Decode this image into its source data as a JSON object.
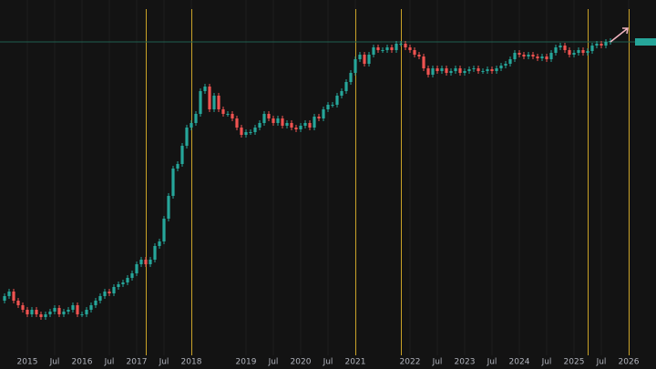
{
  "chart_data": {
    "type": "candlestick",
    "x": [
      "2014-08",
      "2014-09",
      "2014-10",
      "2014-11",
      "2014-12",
      "2015-01",
      "2015-02",
      "2015-03",
      "2015-04",
      "2015-05",
      "2015-06",
      "2015-07",
      "2015-08",
      "2015-09",
      "2015-10",
      "2015-11",
      "2015-12",
      "2016-01",
      "2016-02",
      "2016-03",
      "2016-04",
      "2016-05",
      "2016-06",
      "2016-07",
      "2016-08",
      "2016-09",
      "2016-10",
      "2016-11",
      "2016-12",
      "2017-01",
      "2017-02",
      "2017-03",
      "2017-04",
      "2017-05",
      "2017-06",
      "2017-07",
      "2017-08",
      "2017-09",
      "2017-10",
      "2017-11",
      "2017-12",
      "2018-01",
      "2018-02",
      "2018-03",
      "2018-04",
      "2018-05",
      "2018-06",
      "2018-07",
      "2018-08",
      "2018-09",
      "2018-10",
      "2018-11",
      "2018-12",
      "2019-01",
      "2019-02",
      "2019-03",
      "2019-04",
      "2019-05",
      "2019-06",
      "2019-07",
      "2019-08",
      "2019-09",
      "2019-10",
      "2019-11",
      "2019-12",
      "2020-01",
      "2020-02",
      "2020-03",
      "2020-04",
      "2020-05",
      "2020-06",
      "2020-07",
      "2020-08",
      "2020-09",
      "2020-10",
      "2020-11",
      "2020-12",
      "2021-01",
      "2021-02",
      "2021-03",
      "2021-04",
      "2021-05",
      "2021-06",
      "2021-07",
      "2021-08",
      "2021-09",
      "2021-10",
      "2021-11",
      "2021-12",
      "2022-01",
      "2022-02",
      "2022-03",
      "2022-04",
      "2022-05",
      "2022-06",
      "2022-07",
      "2022-08",
      "2022-09",
      "2022-10",
      "2022-11",
      "2022-12",
      "2023-01",
      "2023-02",
      "2023-03",
      "2023-04",
      "2023-05",
      "2023-06",
      "2023-07",
      "2023-08",
      "2023-09",
      "2023-10",
      "2023-11",
      "2023-12",
      "2024-01",
      "2024-02",
      "2024-03",
      "2024-04",
      "2024-05",
      "2024-06",
      "2024-07",
      "2024-08",
      "2024-09",
      "2024-10",
      "2024-11",
      "2024-12",
      "2025-01",
      "2025-02",
      "2025-03",
      "2025-04",
      "2025-05",
      "2025-06",
      "2025-07",
      "2025-08",
      "2025-09"
    ],
    "open": [
      60,
      65,
      70,
      60,
      55,
      50,
      45,
      50,
      45,
      42,
      45,
      48,
      52,
      45,
      48,
      50,
      55,
      45,
      45,
      50,
      55,
      60,
      65,
      70,
      68,
      75,
      78,
      80,
      85,
      90,
      100,
      105,
      100,
      105,
      120,
      125,
      150,
      175,
      205,
      210,
      230,
      250,
      255,
      265,
      290,
      295,
      270,
      285,
      270,
      265,
      265,
      260,
      250,
      242,
      245,
      245,
      250,
      255,
      265,
      260,
      255,
      260,
      252,
      255,
      250,
      248,
      252,
      255,
      250,
      262,
      260,
      270,
      275,
      275,
      285,
      290,
      300,
      310,
      325,
      330,
      320,
      330,
      338,
      335,
      335,
      338,
      335,
      342,
      342,
      338,
      335,
      330,
      328,
      315,
      308,
      315,
      312,
      315,
      310,
      312,
      315,
      310,
      312,
      314,
      315,
      312,
      312,
      314,
      312,
      315,
      318,
      320,
      325,
      332,
      330,
      328,
      330,
      328,
      326,
      328,
      325,
      332,
      338,
      340,
      335,
      330,
      332,
      335,
      332,
      334,
      340,
      342,
      340,
      344
    ],
    "high": [
      68,
      73,
      73,
      63,
      58,
      53,
      53,
      53,
      48,
      48,
      51,
      55,
      55,
      51,
      53,
      58,
      58,
      48,
      53,
      58,
      63,
      68,
      73,
      73,
      78,
      81,
      83,
      88,
      93,
      103,
      108,
      108,
      108,
      123,
      128,
      153,
      178,
      208,
      213,
      233,
      253,
      258,
      268,
      293,
      298,
      298,
      288,
      288,
      273,
      268,
      268,
      263,
      253,
      248,
      248,
      253,
      258,
      268,
      268,
      263,
      263,
      263,
      258,
      258,
      253,
      255,
      258,
      258,
      265,
      265,
      273,
      278,
      278,
      288,
      293,
      303,
      313,
      328,
      333,
      333,
      333,
      341,
      341,
      338,
      341,
      341,
      345,
      345,
      345,
      341,
      338,
      333,
      331,
      318,
      318,
      318,
      318,
      318,
      315,
      318,
      318,
      315,
      317,
      318,
      318,
      315,
      317,
      317,
      318,
      321,
      323,
      328,
      335,
      335,
      333,
      333,
      333,
      331,
      331,
      331,
      335,
      341,
      343,
      343,
      338,
      335,
      338,
      338,
      337,
      343,
      345,
      345,
      347,
      348
    ],
    "low": [
      57,
      62,
      57,
      52,
      47,
      42,
      42,
      42,
      39,
      39,
      42,
      45,
      42,
      42,
      45,
      47,
      42,
      42,
      42,
      47,
      52,
      57,
      62,
      65,
      65,
      72,
      75,
      77,
      82,
      87,
      97,
      97,
      97,
      102,
      117,
      122,
      147,
      172,
      202,
      207,
      227,
      247,
      252,
      262,
      287,
      267,
      267,
      267,
      262,
      262,
      257,
      247,
      239,
      239,
      242,
      242,
      247,
      252,
      257,
      252,
      252,
      249,
      249,
      247,
      245,
      245,
      249,
      247,
      247,
      257,
      257,
      267,
      272,
      272,
      282,
      287,
      297,
      307,
      322,
      317,
      317,
      327,
      332,
      332,
      332,
      332,
      332,
      339,
      335,
      332,
      327,
      325,
      312,
      305,
      305,
      309,
      309,
      307,
      307,
      309,
      307,
      307,
      309,
      311,
      309,
      309,
      309,
      309,
      309,
      312,
      315,
      317,
      322,
      327,
      325,
      325,
      325,
      323,
      323,
      322,
      322,
      329,
      335,
      332,
      327,
      327,
      329,
      329,
      329,
      331,
      337,
      337,
      337,
      341
    ],
    "close": [
      65,
      70,
      60,
      55,
      50,
      45,
      50,
      45,
      42,
      45,
      48,
      52,
      45,
      48,
      50,
      55,
      45,
      45,
      50,
      55,
      60,
      65,
      70,
      68,
      75,
      78,
      80,
      85,
      90,
      100,
      105,
      100,
      105,
      120,
      125,
      150,
      175,
      205,
      210,
      230,
      250,
      255,
      265,
      290,
      295,
      270,
      285,
      270,
      265,
      265,
      260,
      250,
      242,
      245,
      245,
      250,
      255,
      265,
      260,
      255,
      260,
      252,
      255,
      250,
      248,
      252,
      255,
      250,
      262,
      260,
      270,
      275,
      275,
      285,
      290,
      300,
      310,
      325,
      330,
      320,
      330,
      338,
      335,
      335,
      338,
      335,
      342,
      342,
      338,
      335,
      330,
      328,
      315,
      308,
      315,
      312,
      315,
      310,
      312,
      315,
      310,
      312,
      314,
      315,
      312,
      312,
      314,
      312,
      315,
      318,
      320,
      325,
      332,
      330,
      328,
      330,
      328,
      326,
      328,
      325,
      332,
      338,
      340,
      335,
      330,
      332,
      335,
      332,
      334,
      340,
      342,
      340,
      344,
      345
    ],
    "up_color": "#26a69a",
    "down_color": "#ef5350",
    "xlim": [
      "2014-07",
      "2026-07"
    ],
    "ylim": [
      0,
      390
    ],
    "xticks": [
      {
        "value": "2015-01",
        "label": "2015"
      },
      {
        "value": "2015-07",
        "label": "Jul"
      },
      {
        "value": "2016-01",
        "label": "2016"
      },
      {
        "value": "2016-07",
        "label": "Jul"
      },
      {
        "value": "2017-01",
        "label": "2017"
      },
      {
        "value": "2017-07",
        "label": "Jul"
      },
      {
        "value": "2018-01",
        "label": "2018"
      },
      {
        "value": "2019-01",
        "label": "2019"
      },
      {
        "value": "2019-07",
        "label": "Jul"
      },
      {
        "value": "2020-01",
        "label": "2020"
      },
      {
        "value": "2020-07",
        "label": "Jul"
      },
      {
        "value": "2021-01",
        "label": "2021"
      },
      {
        "value": "2022-01",
        "label": "2022"
      },
      {
        "value": "2022-07",
        "label": "Jul"
      },
      {
        "value": "2023-01",
        "label": "2023"
      },
      {
        "value": "2023-07",
        "label": "Jul"
      },
      {
        "value": "2024-01",
        "label": "2024"
      },
      {
        "value": "2024-07",
        "label": "Jul"
      },
      {
        "value": "2025-01",
        "label": "2025"
      },
      {
        "value": "2025-07",
        "label": "Jul"
      },
      {
        "value": "2026-01",
        "label": "2026"
      }
    ],
    "grid": true,
    "vlines": [
      "2017-03",
      "2018-01",
      "2021-01",
      "2021-11",
      "2025-04",
      "2026-01"
    ],
    "vline_color": "#c9a227",
    "hline": 344,
    "hline_color": "#1f5f4f"
  }
}
